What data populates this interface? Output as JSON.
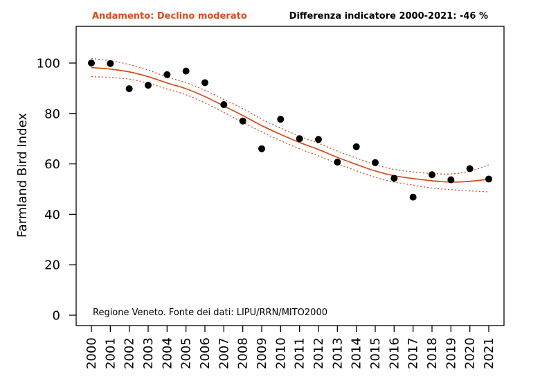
{
  "chart_data": {
    "type": "scatter",
    "trend_text": "Andamento:  Declino moderato",
    "difference_text": "Differenza indicatore 2000-2021: -46 %",
    "source_note": "Regione Veneto. Fonte dei dati: LIPU/RRN/MITO2000",
    "ylabel": "Farmland Bird Index",
    "xlim": [
      2000,
      2021
    ],
    "ylim": [
      0,
      110
    ],
    "yticks": [
      0,
      20,
      40,
      60,
      80,
      100
    ],
    "x": [
      2000,
      2001,
      2002,
      2003,
      2004,
      2005,
      2006,
      2007,
      2008,
      2009,
      2010,
      2011,
      2012,
      2013,
      2014,
      2015,
      2016,
      2017,
      2018,
      2019,
      2020,
      2021
    ],
    "x_labels": [
      "2000",
      "2001",
      "2002",
      "2003",
      "2004",
      "2005",
      "2006",
      "2007",
      "2008",
      "2009",
      "2010",
      "2011",
      "2012",
      "2013",
      "2014",
      "2015",
      "2016",
      "2017",
      "2018",
      "2019",
      "2020",
      "2021"
    ],
    "points": [
      100,
      99.8,
      89.8,
      91.2,
      95.4,
      96.8,
      92.2,
      83.5,
      77,
      66,
      77.7,
      70,
      69.7,
      60.7,
      66.8,
      60.5,
      54.3,
      46.8,
      55.7,
      53.7,
      58.1,
      54
    ],
    "trend": [
      98.2,
      97.6,
      96.5,
      94.6,
      92.1,
      89.8,
      86.7,
      83.0,
      79.2,
      75.2,
      71.7,
      68.5,
      65.7,
      62.6,
      59.8,
      57.2,
      55.3,
      54.2,
      53.3,
      52.8,
      53.1,
      53.9
    ],
    "trend_upper": [
      101.8,
      100.9,
      99.4,
      97.2,
      94.5,
      92.2,
      89.2,
      85.6,
      81.9,
      77.7,
      74.2,
      71.0,
      68.2,
      65.1,
      62.3,
      59.7,
      57.8,
      56.8,
      56.2,
      56.0,
      57.1,
      59.6
    ],
    "trend_lower": [
      94.6,
      94.3,
      93.6,
      92.0,
      89.7,
      87.4,
      84.2,
      80.4,
      76.5,
      72.7,
      69.2,
      66.0,
      63.2,
      60.1,
      57.3,
      54.7,
      52.8,
      51.6,
      50.4,
      49.8,
      49.3,
      48.9
    ],
    "grid": false,
    "colors": {
      "trend": "#d2491b",
      "points": "#000000",
      "trend_text": "#e0491a"
    }
  }
}
